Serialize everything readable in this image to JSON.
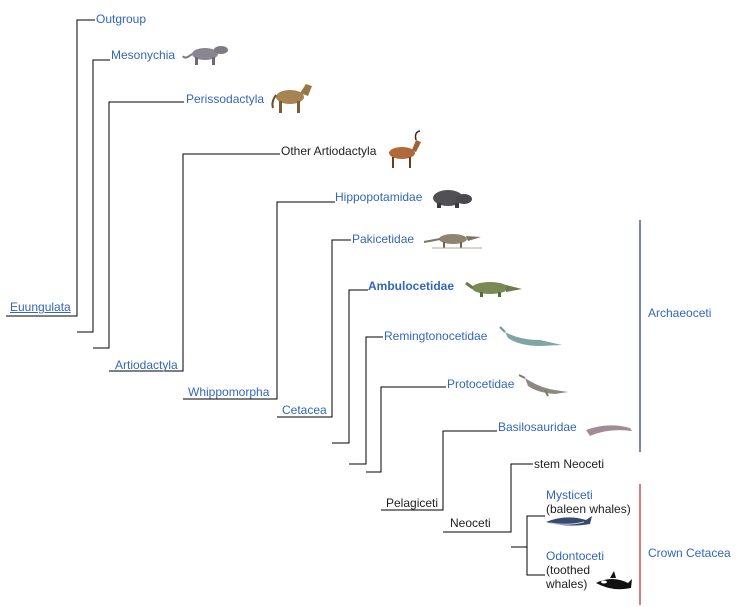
{
  "colors": {
    "link": "#3366bb",
    "text": "#202122",
    "archaeoceti_bar": "#1f2f8f",
    "crown_bar": "#cc2222",
    "lines": "#000000"
  },
  "nodes": {
    "euungulata": "Euungulata",
    "artiodactyla": "Artiodactyla",
    "whippomorpha": "Whippomorpha",
    "cetacea": "Cetacea",
    "pelagiceti": "Pelagiceti",
    "neoceti": "Neoceti"
  },
  "taxa": {
    "outgroup": "Outgroup",
    "mesonychia": "Mesonychia",
    "perissodactyla": "Perissodactyla",
    "other_artiodactyla": "Other Artiodactyla",
    "hippopotamidae": "Hippopotamidae",
    "pakicetidae": "Pakicetidae",
    "ambulocetidae": "Ambulocetidae",
    "remingtonocetidae": "Remingtonocetidae",
    "protocetidae": "Protocetidae",
    "basilosauridae": "Basilosauridae",
    "stem_neoceti": "stem Neoceti",
    "mysticeti": "Mysticeti",
    "mysticeti_note": "(baleen whales)",
    "odontoceti": "Odontoceti",
    "odontoceti_note_1": "(toothed",
    "odontoceti_note_2": "whales)"
  },
  "groups": {
    "archaeoceti": "Archaeoceti",
    "crown_cetacea": "Crown Cetacea"
  },
  "icons": [
    "mesonychid-icon",
    "horse-icon",
    "antelope-icon",
    "hippo-icon",
    "pakicetus-icon",
    "ambulocetus-icon",
    "remingtonocetus-icon",
    "protocetus-icon",
    "basilosaurus-icon",
    "blue-whale-icon",
    "orca-icon"
  ]
}
